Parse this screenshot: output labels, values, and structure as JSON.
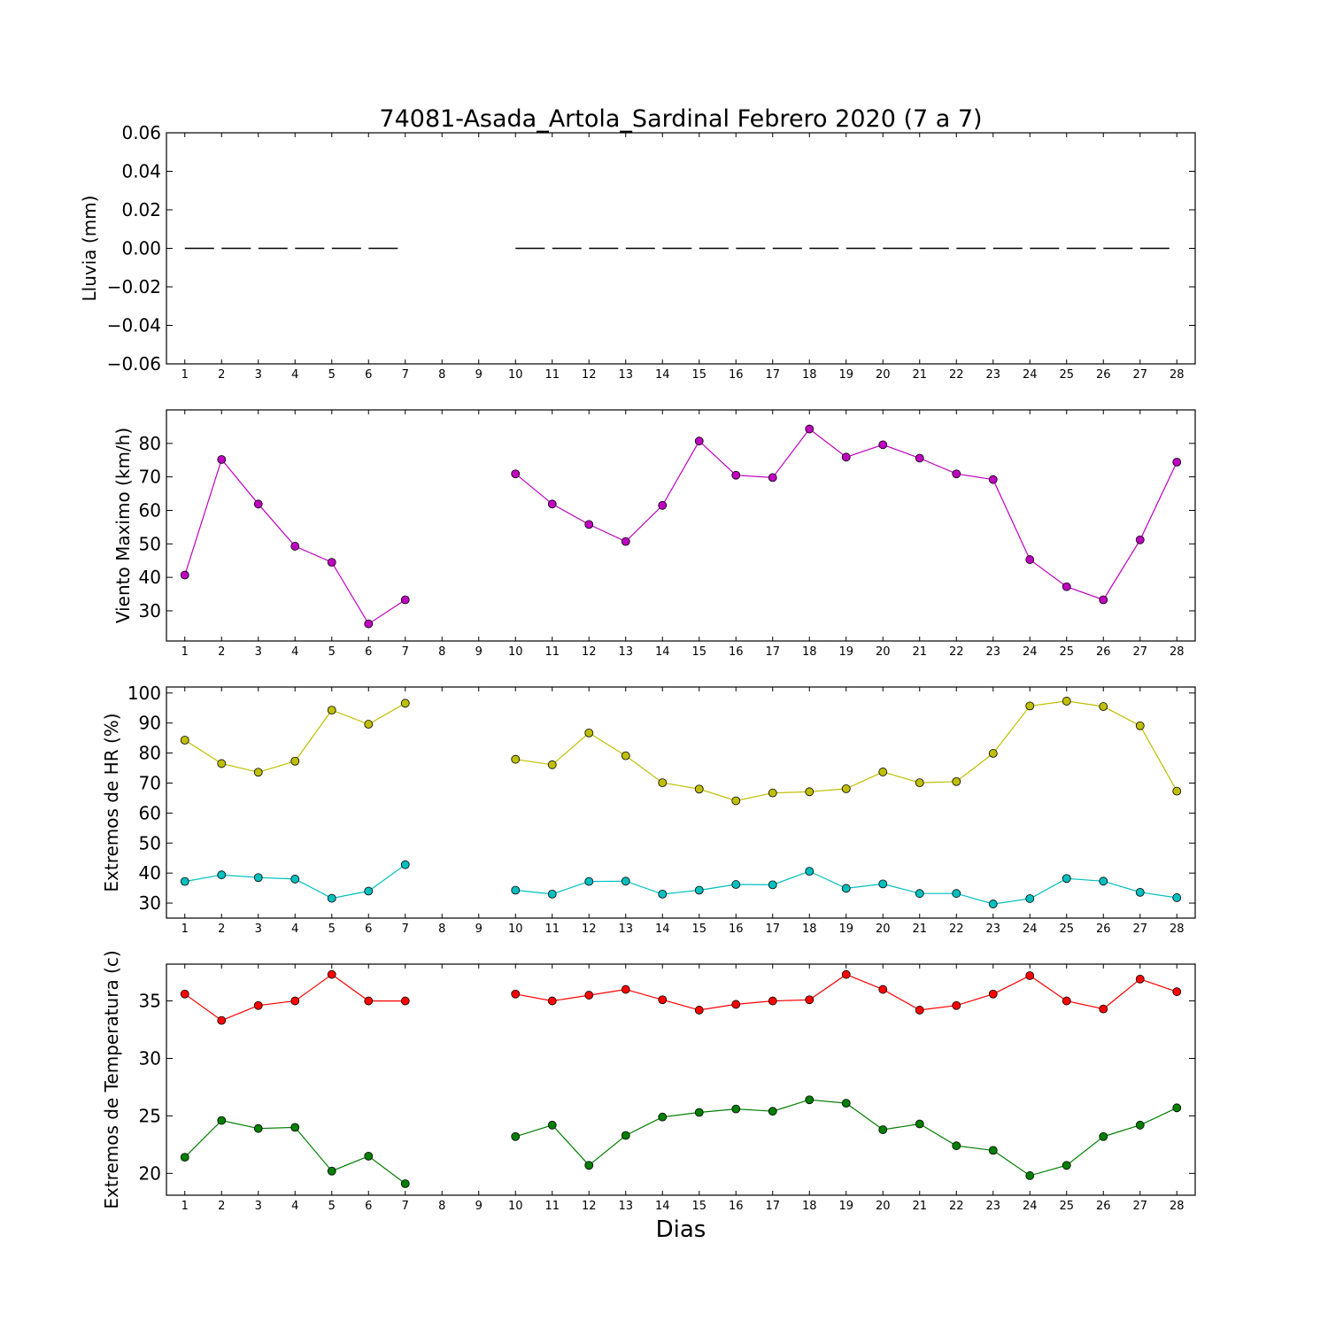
{
  "title": "74081-Asada_Artola_Sardinal Febrero 2020  (7 a 7)",
  "xlabel": "Dias",
  "chart_data": [
    {
      "type": "line",
      "ylabel": "Lluvia (mm)",
      "x": [
        1,
        2,
        3,
        4,
        5,
        6,
        7,
        8,
        9,
        10,
        11,
        12,
        13,
        14,
        15,
        16,
        17,
        18,
        19,
        20,
        21,
        22,
        23,
        24,
        25,
        26,
        27,
        28
      ],
      "ylim": [
        -0.06,
        0.06
      ],
      "yticks": [
        -0.06,
        -0.04,
        -0.02,
        0.0,
        0.02,
        0.04,
        0.06
      ],
      "ytick_labels": [
        "−0.06",
        "−0.04",
        "−0.02",
        "0.00",
        "0.02",
        "0.04",
        "0.06"
      ],
      "series": [
        {
          "color": "#000000",
          "style": "dash",
          "markers": false,
          "values": [
            0,
            0,
            0,
            0,
            0,
            0,
            0,
            null,
            null,
            0,
            0,
            0,
            0,
            0,
            0,
            0,
            0,
            0,
            0,
            0,
            0,
            0,
            0,
            0,
            0,
            0,
            0,
            0
          ]
        }
      ]
    },
    {
      "type": "line",
      "ylabel": "Viento Maximo (km/h)",
      "x": [
        1,
        2,
        3,
        4,
        5,
        6,
        7,
        8,
        9,
        10,
        11,
        12,
        13,
        14,
        15,
        16,
        17,
        18,
        19,
        20,
        21,
        22,
        23,
        24,
        25,
        26,
        27,
        28
      ],
      "ylim": [
        21,
        90
      ],
      "yticks": [
        30,
        40,
        50,
        60,
        70,
        80
      ],
      "ytick_labels": [
        "30",
        "40",
        "50",
        "60",
        "70",
        "80"
      ],
      "series": [
        {
          "color": "#bf00bf",
          "markers": true,
          "values": [
            40.7,
            75.2,
            61.9,
            49.3,
            44.5,
            26.1,
            33.3,
            null,
            null,
            70.9,
            61.9,
            55.8,
            50.7,
            61.5,
            80.7,
            70.5,
            69.8,
            84.3,
            75.9,
            79.6,
            75.6,
            70.9,
            69.2,
            45.3,
            37.2,
            33.3,
            51.2,
            74.4
          ]
        }
      ]
    },
    {
      "type": "line",
      "ylabel": "Extremos de HR (%)",
      "x": [
        1,
        2,
        3,
        4,
        5,
        6,
        7,
        8,
        9,
        10,
        11,
        12,
        13,
        14,
        15,
        16,
        17,
        18,
        19,
        20,
        21,
        22,
        23,
        24,
        25,
        26,
        27,
        28
      ],
      "ylim": [
        25,
        102
      ],
      "yticks": [
        30,
        40,
        50,
        60,
        70,
        80,
        90,
        100
      ],
      "ytick_labels": [
        "30",
        "40",
        "50",
        "60",
        "70",
        "80",
        "90",
        "100"
      ],
      "series": [
        {
          "color": "#bfbf00",
          "markers": true,
          "values": [
            84.3,
            76.5,
            73.6,
            77.3,
            94.3,
            89.6,
            96.6,
            null,
            null,
            77.9,
            76.1,
            86.7,
            79.1,
            70.1,
            68.0,
            64.1,
            66.7,
            67.1,
            68.1,
            73.7,
            70.1,
            70.5,
            79.9,
            95.7,
            97.3,
            95.5,
            89.1,
            67.3
          ]
        },
        {
          "color": "#00bfbf",
          "markers": true,
          "values": [
            37.2,
            39.4,
            38.5,
            38.0,
            31.6,
            34.0,
            42.8,
            null,
            null,
            34.3,
            33.0,
            37.2,
            37.3,
            33.0,
            34.3,
            36.2,
            36.1,
            40.6,
            34.9,
            36.4,
            33.2,
            33.2,
            29.7,
            31.5,
            38.2,
            37.3,
            33.6,
            31.8
          ]
        }
      ]
    },
    {
      "type": "line",
      "ylabel": "Extremos de Temperatura (c)",
      "x": [
        1,
        2,
        3,
        4,
        5,
        6,
        7,
        8,
        9,
        10,
        11,
        12,
        13,
        14,
        15,
        16,
        17,
        18,
        19,
        20,
        21,
        22,
        23,
        24,
        25,
        26,
        27,
        28
      ],
      "ylim": [
        18.1,
        38.2
      ],
      "yticks": [
        20,
        25,
        30,
        35
      ],
      "ytick_labels": [
        "20",
        "25",
        "30",
        "35"
      ],
      "series": [
        {
          "color": "#ff0000",
          "markers": true,
          "values": [
            35.6,
            33.3,
            34.6,
            35.0,
            37.3,
            35.0,
            35.0,
            null,
            null,
            35.6,
            35.0,
            35.5,
            36.0,
            35.1,
            34.2,
            34.7,
            35.0,
            35.1,
            37.3,
            36.0,
            34.2,
            34.6,
            35.6,
            37.2,
            35.0,
            34.3,
            36.9,
            35.8
          ]
        },
        {
          "color": "#007f00",
          "markers": true,
          "values": [
            21.4,
            24.6,
            23.9,
            24.0,
            20.2,
            21.5,
            19.1,
            null,
            null,
            23.2,
            24.2,
            20.7,
            23.3,
            24.9,
            25.3,
            25.6,
            25.4,
            26.4,
            26.1,
            23.8,
            24.3,
            22.4,
            22.0,
            19.8,
            20.7,
            23.2,
            24.2,
            25.7
          ]
        }
      ]
    }
  ]
}
